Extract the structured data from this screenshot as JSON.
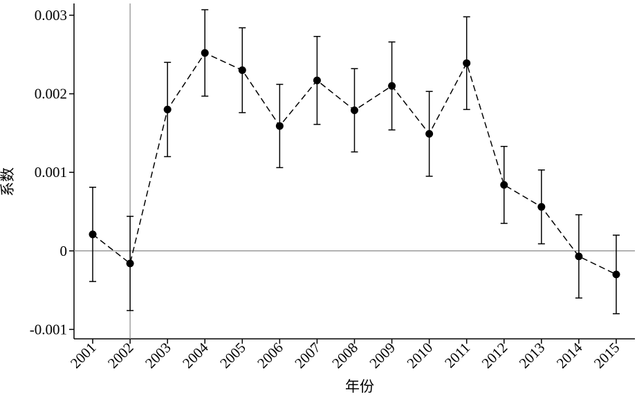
{
  "chart_data": {
    "type": "errorbar",
    "x_label": "年份",
    "y_label": "系数",
    "x": [
      2001,
      2002,
      2003,
      2004,
      2005,
      2006,
      2007,
      2008,
      2009,
      2010,
      2011,
      2012,
      2013,
      2014,
      2015
    ],
    "values": [
      0.00021,
      -0.00016,
      0.0018,
      0.00252,
      0.0023,
      0.00159,
      0.00217,
      0.00179,
      0.0021,
      0.00149,
      0.00239,
      0.00084,
      0.00056,
      -7e-05,
      -0.0003
    ],
    "errors": [
      0.0006,
      0.0006,
      0.0006,
      0.00055,
      0.00054,
      0.00053,
      0.00056,
      0.00053,
      0.00056,
      0.00054,
      0.00059,
      0.00049,
      0.00047,
      0.00053,
      0.0005
    ],
    "color": "#000000",
    "xlim": [
      2000.5,
      2015.5
    ],
    "xticks": [
      2001,
      2002,
      2003,
      2004,
      2005,
      2006,
      2007,
      2008,
      2009,
      2010,
      2011,
      2012,
      2013,
      2014,
      2015
    ],
    "ylim": [
      -0.00112,
      0.00315
    ],
    "yticks": [
      -0.001,
      0,
      0.001,
      0.002,
      0.003
    ],
    "hline": 0,
    "vline": 2002
  }
}
